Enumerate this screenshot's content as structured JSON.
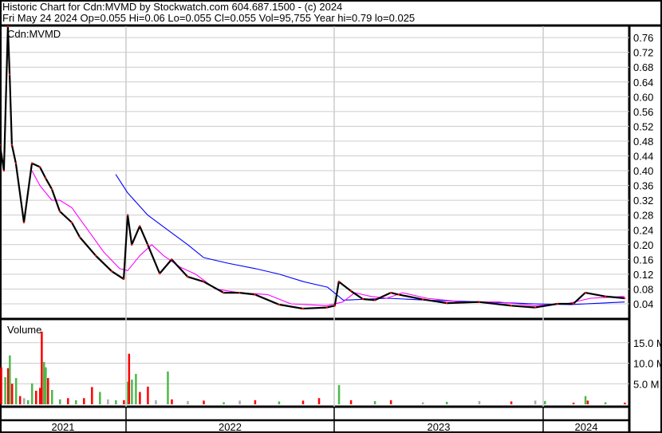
{
  "header": {
    "title": "Historic Chart for Cdn:MVMD by Stockwatch.com 604.687.1500 - (c) 2024",
    "quote": "Fri May 24 2024  Op=0.055  Hi=0.06  Lo=0.055  Cl=0.055  Vol=95,755  Year hi=0.79  lo=0.025"
  },
  "chart_data": [
    {
      "type": "line",
      "title": "Cdn:MVMD",
      "grid": true,
      "axis_side": "right",
      "ylim": [
        0.02,
        0.79
      ],
      "yticks": [
        "0.04",
        "0.08",
        "0.12",
        "0.16",
        "0.20",
        "0.24",
        "0.28",
        "0.32",
        "0.36",
        "0.40",
        "0.44",
        "0.48",
        "0.52",
        "0.56",
        "0.60",
        "0.64",
        "0.68",
        "0.72",
        "0.76"
      ],
      "xticks": [
        "2021",
        "2022",
        "2023",
        "2024"
      ],
      "colors": {
        "price": "#000000",
        "ma_short": "#ff00ff",
        "ma_long": "#0000ff"
      },
      "series": [
        {
          "key": "price",
          "points": [
            [
              "2021-05-25",
              0.47
            ],
            [
              "2021-06-01",
              0.4
            ],
            [
              "2021-06-08",
              0.79
            ],
            [
              "2021-06-11",
              0.66
            ],
            [
              "2021-06-15",
              0.47
            ],
            [
              "2021-06-22",
              0.42
            ],
            [
              "2021-07-06",
              0.26
            ],
            [
              "2021-07-20",
              0.42
            ],
            [
              "2021-08-03",
              0.41
            ],
            [
              "2021-08-13",
              0.38
            ],
            [
              "2021-08-24",
              0.35
            ],
            [
              "2021-09-07",
              0.29
            ],
            [
              "2021-09-28",
              0.26
            ],
            [
              "2021-10-12",
              0.22
            ],
            [
              "2021-11-09",
              0.17
            ],
            [
              "2021-12-07",
              0.128
            ],
            [
              "2021-12-28",
              0.107
            ],
            [
              "2022-01-04",
              0.28
            ],
            [
              "2022-01-11",
              0.2
            ],
            [
              "2022-01-25",
              0.25
            ],
            [
              "2022-02-08",
              0.2
            ],
            [
              "2022-03-01",
              0.122
            ],
            [
              "2022-03-22",
              0.16
            ],
            [
              "2022-04-19",
              0.113
            ],
            [
              "2022-05-17",
              0.1
            ],
            [
              "2022-06-21",
              0.07
            ],
            [
              "2022-07-19",
              0.07
            ],
            [
              "2022-08-15",
              0.065
            ],
            [
              "2022-09-26",
              0.038
            ],
            [
              "2022-11-07",
              0.027
            ],
            [
              "2022-12-19",
              0.03
            ],
            [
              "2023-01-02",
              0.035
            ],
            [
              "2023-01-09",
              0.1
            ],
            [
              "2023-01-30",
              0.075
            ],
            [
              "2023-02-20",
              0.053
            ],
            [
              "2023-03-13",
              0.05
            ],
            [
              "2023-04-10",
              0.07
            ],
            [
              "2023-04-24",
              0.065
            ],
            [
              "2023-06-05",
              0.052
            ],
            [
              "2023-07-17",
              0.042
            ],
            [
              "2023-09-12",
              0.045
            ],
            [
              "2023-11-07",
              0.035
            ],
            [
              "2023-12-19",
              0.03
            ],
            [
              "2024-01-27",
              0.04
            ],
            [
              "2024-02-24",
              0.04
            ],
            [
              "2024-03-16",
              0.07
            ],
            [
              "2024-04-20",
              0.06
            ],
            [
              "2024-05-24",
              0.055
            ]
          ]
        },
        {
          "key": "ma_short",
          "points": [
            [
              "2021-07-20",
              0.4
            ],
            [
              "2021-08-03",
              0.36
            ],
            [
              "2021-08-24",
              0.32
            ],
            [
              "2021-09-07",
              0.32
            ],
            [
              "2021-09-28",
              0.3
            ],
            [
              "2021-10-26",
              0.24
            ],
            [
              "2021-11-23",
              0.18
            ],
            [
              "2021-12-21",
              0.135
            ],
            [
              "2022-01-04",
              0.13
            ],
            [
              "2022-01-25",
              0.17
            ],
            [
              "2022-02-15",
              0.2
            ],
            [
              "2022-03-08",
              0.17
            ],
            [
              "2022-04-05",
              0.14
            ],
            [
              "2022-05-03",
              0.12
            ],
            [
              "2022-06-07",
              0.08
            ],
            [
              "2022-07-19",
              0.07
            ],
            [
              "2022-09-06",
              0.065
            ],
            [
              "2022-10-17",
              0.04
            ],
            [
              "2022-12-19",
              0.035
            ],
            [
              "2023-01-16",
              0.045
            ],
            [
              "2023-02-06",
              0.07
            ],
            [
              "2023-03-06",
              0.06
            ],
            [
              "2023-04-03",
              0.055
            ],
            [
              "2023-05-01",
              0.07
            ],
            [
              "2023-06-12",
              0.055
            ],
            [
              "2023-08-14",
              0.045
            ],
            [
              "2023-10-16",
              0.045
            ],
            [
              "2023-12-18",
              0.035
            ],
            [
              "2024-02-12",
              0.04
            ],
            [
              "2024-03-25",
              0.055
            ],
            [
              "2024-05-24",
              0.06
            ]
          ]
        },
        {
          "key": "ma_long",
          "points": [
            [
              "2021-12-14",
              0.39
            ],
            [
              "2022-01-04",
              0.34
            ],
            [
              "2022-02-08",
              0.28
            ],
            [
              "2022-03-15",
              0.24
            ],
            [
              "2022-04-19",
              0.2
            ],
            [
              "2022-05-17",
              0.165
            ],
            [
              "2022-06-28",
              0.15
            ],
            [
              "2022-08-16",
              0.135
            ],
            [
              "2022-09-27",
              0.12
            ],
            [
              "2022-11-08",
              0.1
            ],
            [
              "2022-12-20",
              0.085
            ],
            [
              "2023-01-17",
              0.05
            ],
            [
              "2023-04-04",
              0.055
            ],
            [
              "2023-06-13",
              0.05
            ],
            [
              "2023-09-19",
              0.045
            ],
            [
              "2023-12-19",
              0.04
            ],
            [
              "2024-02-20",
              0.038
            ],
            [
              "2024-05-24",
              0.045
            ]
          ]
        }
      ]
    },
    {
      "type": "bar",
      "title": "Volume",
      "grid": true,
      "ylim": [
        0,
        20
      ],
      "yticks": [
        "5.0 M",
        "10.0 M",
        "15.0 M"
      ],
      "colors": {
        "up": "#4db84d",
        "down": "#ff0000",
        "flat": "#aaaaaa"
      },
      "bars": [
        [
          "2021-05-27",
          9.0,
          "down"
        ],
        [
          "2021-06-03",
          6.6,
          "up"
        ],
        [
          "2021-06-08",
          8.8,
          "down"
        ],
        [
          "2021-06-11",
          11.9,
          "up"
        ],
        [
          "2021-06-15",
          5.0,
          "down"
        ],
        [
          "2021-06-22",
          6.4,
          "up"
        ],
        [
          "2021-06-29",
          2.0,
          "down"
        ],
        [
          "2021-07-06",
          1.5,
          "flat"
        ],
        [
          "2021-07-13",
          1.0,
          "up"
        ],
        [
          "2021-07-20",
          5.1,
          "up"
        ],
        [
          "2021-07-27",
          3.3,
          "down"
        ],
        [
          "2021-08-03",
          4.0,
          "down"
        ],
        [
          "2021-08-06",
          17.7,
          "down"
        ],
        [
          "2021-08-10",
          10.3,
          "up"
        ],
        [
          "2021-08-13",
          9.0,
          "up"
        ],
        [
          "2021-08-17",
          6.4,
          "down"
        ],
        [
          "2021-08-24",
          3.5,
          "up"
        ],
        [
          "2021-09-07",
          1.2,
          "up"
        ],
        [
          "2021-09-21",
          1.5,
          "down"
        ],
        [
          "2021-10-05",
          1.0,
          "up"
        ],
        [
          "2021-10-19",
          1.5,
          "down"
        ],
        [
          "2021-11-02",
          4.2,
          "down"
        ],
        [
          "2021-11-16",
          3.0,
          "up"
        ],
        [
          "2021-11-30",
          1.2,
          "flat"
        ],
        [
          "2021-12-14",
          1.0,
          "up"
        ],
        [
          "2021-12-28",
          1.0,
          "down"
        ],
        [
          "2022-01-04",
          5.5,
          "up"
        ],
        [
          "2022-01-06",
          12.3,
          "down"
        ],
        [
          "2022-01-11",
          6.0,
          "up"
        ],
        [
          "2022-01-18",
          7.4,
          "up"
        ],
        [
          "2022-01-25",
          3.0,
          "down"
        ],
        [
          "2022-02-08",
          4.3,
          "down"
        ],
        [
          "2022-02-22",
          1.0,
          "flat"
        ],
        [
          "2022-03-15",
          8.0,
          "up"
        ],
        [
          "2022-03-22",
          1.2,
          "down"
        ],
        [
          "2022-04-19",
          0.8,
          "flat"
        ],
        [
          "2022-05-17",
          0.9,
          "down"
        ],
        [
          "2022-06-21",
          0.5,
          "up"
        ],
        [
          "2022-07-19",
          0.9,
          "flat"
        ],
        [
          "2022-08-15",
          1.0,
          "down"
        ],
        [
          "2022-09-26",
          0.7,
          "up"
        ],
        [
          "2022-11-07",
          0.9,
          "down"
        ],
        [
          "2022-12-05",
          1.5,
          "down"
        ],
        [
          "2023-01-09",
          4.7,
          "up"
        ],
        [
          "2023-01-30",
          1.0,
          "down"
        ],
        [
          "2023-03-13",
          0.8,
          "up"
        ],
        [
          "2023-04-10",
          1.0,
          "down"
        ],
        [
          "2023-06-05",
          0.5,
          "flat"
        ],
        [
          "2023-07-17",
          0.6,
          "up"
        ],
        [
          "2023-09-12",
          0.8,
          "flat"
        ],
        [
          "2023-11-07",
          0.7,
          "down"
        ],
        [
          "2023-12-19",
          0.9,
          "flat"
        ],
        [
          "2024-01-05",
          0.8,
          "up"
        ],
        [
          "2024-02-24",
          0.4,
          "down"
        ],
        [
          "2024-03-16",
          2.0,
          "up"
        ],
        [
          "2024-03-20",
          0.9,
          "down"
        ],
        [
          "2024-04-20",
          0.5,
          "up"
        ],
        [
          "2024-05-24",
          0.4,
          "down"
        ]
      ]
    }
  ]
}
